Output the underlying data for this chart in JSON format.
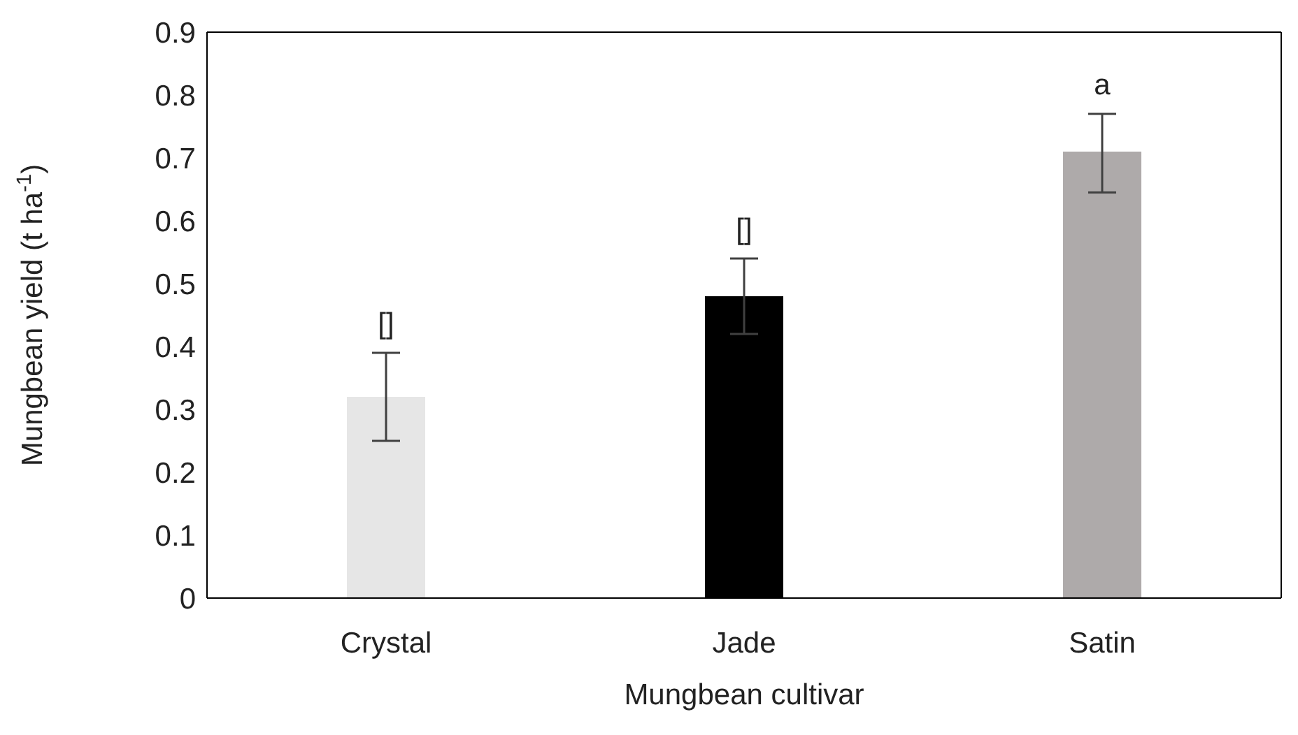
{
  "chart_data": {
    "type": "bar",
    "xlabel": "Mungbean cultivar",
    "ylabel": "Mungbean yield (t ha$^{-1}$)",
    "categories": [
      "Crystal",
      "Jade",
      "Satin"
    ],
    "values": [
      0.32,
      0.48,
      0.71
    ],
    "colors": [
      "#e6e6e6",
      "#000000",
      "#aeaaaa"
    ],
    "errors": [
      [
        0.25,
        0.39
      ],
      [
        0.42,
        0.54
      ],
      [
        0.645,
        0.77
      ]
    ],
    "ylim": [
      0,
      0.9
    ],
    "yticks": [
      0,
      0.1,
      0.2,
      0.3,
      0.4,
      0.5,
      0.6,
      0.7,
      0.8,
      0.9
    ],
    "grid": false,
    "legend": false,
    "annotations": [
      {
        "text": "[]",
        "x": "Crystal",
        "y": 0.39
      },
      {
        "text": "[]",
        "x": "Jade",
        "y": 0.54
      },
      {
        "text": "a",
        "x": "Satin",
        "y": 0.77
      }
    ]
  }
}
